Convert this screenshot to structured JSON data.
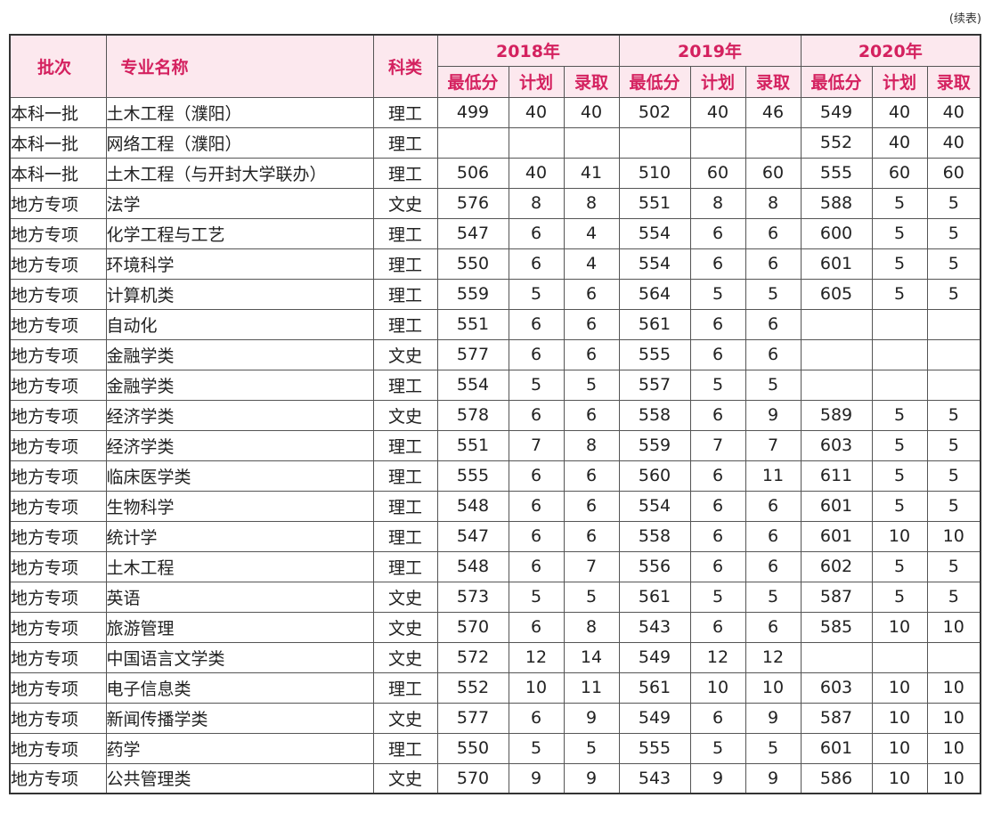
{
  "continued_note": "(续表)",
  "header": {
    "batch": "批次",
    "major": "专业名称",
    "category": "科类",
    "years": [
      "2018年",
      "2019年",
      "2020年"
    ],
    "sub": [
      "最低分",
      "计划",
      "录取"
    ]
  },
  "rows": [
    [
      "本科一批",
      "土木工程（濮阳）",
      "理工",
      "499",
      "40",
      "40",
      "502",
      "40",
      "46",
      "549",
      "40",
      "40"
    ],
    [
      "本科一批",
      "网络工程（濮阳）",
      "理工",
      "",
      "",
      "",
      "",
      "",
      "",
      "552",
      "40",
      "40"
    ],
    [
      "本科一批",
      "土木工程（与开封大学联办）",
      "理工",
      "506",
      "40",
      "41",
      "510",
      "60",
      "60",
      "555",
      "60",
      "60"
    ],
    [
      "地方专项",
      "法学",
      "文史",
      "576",
      "8",
      "8",
      "551",
      "8",
      "8",
      "588",
      "5",
      "5"
    ],
    [
      "地方专项",
      "化学工程与工艺",
      "理工",
      "547",
      "6",
      "4",
      "554",
      "6",
      "6",
      "600",
      "5",
      "5"
    ],
    [
      "地方专项",
      "环境科学",
      "理工",
      "550",
      "6",
      "4",
      "554",
      "6",
      "6",
      "601",
      "5",
      "5"
    ],
    [
      "地方专项",
      "计算机类",
      "理工",
      "559",
      "5",
      "6",
      "564",
      "5",
      "5",
      "605",
      "5",
      "5"
    ],
    [
      "地方专项",
      "自动化",
      "理工",
      "551",
      "6",
      "6",
      "561",
      "6",
      "6",
      "",
      "",
      ""
    ],
    [
      "地方专项",
      "金融学类",
      "文史",
      "577",
      "6",
      "6",
      "555",
      "6",
      "6",
      "",
      "",
      ""
    ],
    [
      "地方专项",
      "金融学类",
      "理工",
      "554",
      "5",
      "5",
      "557",
      "5",
      "5",
      "",
      "",
      ""
    ],
    [
      "地方专项",
      "经济学类",
      "文史",
      "578",
      "6",
      "6",
      "558",
      "6",
      "9",
      "589",
      "5",
      "5"
    ],
    [
      "地方专项",
      "经济学类",
      "理工",
      "551",
      "7",
      "8",
      "559",
      "7",
      "7",
      "603",
      "5",
      "5"
    ],
    [
      "地方专项",
      "临床医学类",
      "理工",
      "555",
      "6",
      "6",
      "560",
      "6",
      "11",
      "611",
      "5",
      "5"
    ],
    [
      "地方专项",
      "生物科学",
      "理工",
      "548",
      "6",
      "6",
      "554",
      "6",
      "6",
      "601",
      "5",
      "5"
    ],
    [
      "地方专项",
      "统计学",
      "理工",
      "547",
      "6",
      "6",
      "558",
      "6",
      "6",
      "601",
      "10",
      "10"
    ],
    [
      "地方专项",
      "土木工程",
      "理工",
      "548",
      "6",
      "7",
      "556",
      "6",
      "6",
      "602",
      "5",
      "5"
    ],
    [
      "地方专项",
      "英语",
      "文史",
      "573",
      "5",
      "5",
      "561",
      "5",
      "5",
      "587",
      "5",
      "5"
    ],
    [
      "地方专项",
      "旅游管理",
      "文史",
      "570",
      "6",
      "8",
      "543",
      "6",
      "6",
      "585",
      "10",
      "10"
    ],
    [
      "地方专项",
      "中国语言文学类",
      "文史",
      "572",
      "12",
      "14",
      "549",
      "12",
      "12",
      "",
      "",
      ""
    ],
    [
      "地方专项",
      "电子信息类",
      "理工",
      "552",
      "10",
      "11",
      "561",
      "10",
      "10",
      "603",
      "10",
      "10"
    ],
    [
      "地方专项",
      "新闻传播学类",
      "文史",
      "577",
      "6",
      "9",
      "549",
      "6",
      "9",
      "587",
      "10",
      "10"
    ],
    [
      "地方专项",
      "药学",
      "理工",
      "550",
      "5",
      "5",
      "555",
      "5",
      "5",
      "601",
      "10",
      "10"
    ],
    [
      "地方专项",
      "公共管理类",
      "文史",
      "570",
      "9",
      "9",
      "543",
      "9",
      "9",
      "586",
      "10",
      "10"
    ]
  ],
  "colors": {
    "header_bg": "#fce8ee",
    "header_text": "#d4215f",
    "border": "#555555"
  }
}
